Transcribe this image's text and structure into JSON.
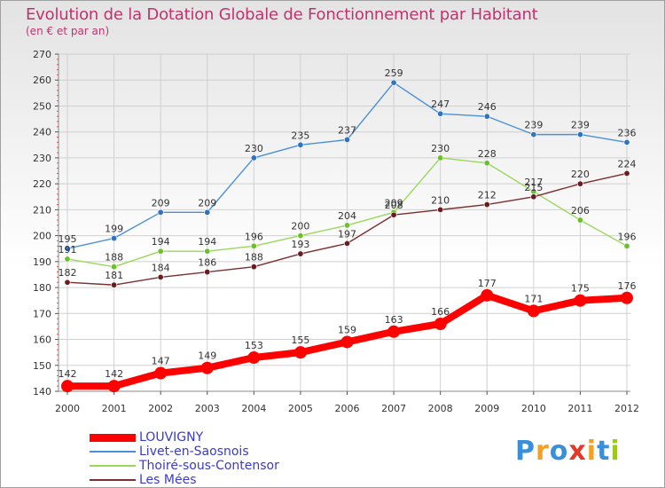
{
  "header": {
    "title": "Evolution de la Dotation Globale de Fonctionnement par Habitant",
    "subtitle": "(en € et par an)"
  },
  "chart_data": {
    "type": "line",
    "x": [
      "2000",
      "2001",
      "2002",
      "2003",
      "2004",
      "2005",
      "2006",
      "2007",
      "2008",
      "2009",
      "2010",
      "2011",
      "2012"
    ],
    "ylim": [
      140,
      270
    ],
    "yticks": [
      140,
      150,
      160,
      170,
      180,
      190,
      200,
      210,
      220,
      230,
      240,
      250,
      260,
      270
    ],
    "grid": true,
    "legend_position": "bottom-left",
    "series": [
      {
        "name": "Livet-en-Saosnois",
        "color": "#4a90d9",
        "marker": "#2e74c0",
        "values": [
          195,
          199,
          209,
          209,
          230,
          235,
          237,
          259,
          247,
          246,
          239,
          239,
          236
        ]
      },
      {
        "name": "Thoiré-sous-Contensor",
        "color": "#9ad85a",
        "marker": "#6cc02a",
        "values": [
          191,
          188,
          194,
          194,
          196,
          200,
          204,
          209,
          230,
          228,
          217,
          206,
          196
        ]
      },
      {
        "name": "Les Mées",
        "color": "#7a2f30",
        "marker": "#6a1d20",
        "values": [
          182,
          181,
          184,
          186,
          188,
          193,
          197,
          208,
          210,
          212,
          215,
          220,
          224
        ]
      },
      {
        "name": "LOUVIGNY",
        "color": "#ff0000",
        "marker": "#ff0000",
        "values": [
          142,
          142,
          147,
          149,
          153,
          155,
          159,
          163,
          166,
          177,
          171,
          175,
          176
        ]
      }
    ]
  },
  "legend": {
    "items": [
      {
        "label": "LOUVIGNY",
        "color": "#ff0000",
        "weight": 9
      },
      {
        "label": "Livet-en-Saosnois",
        "color": "#4a90d9",
        "weight": 2
      },
      {
        "label": "Thoiré-sous-Contensor",
        "color": "#9ad85a",
        "weight": 2
      },
      {
        "label": "Les Mées",
        "color": "#7a2f30",
        "weight": 2
      }
    ]
  },
  "logo": {
    "letters": [
      "P",
      "r",
      "o",
      "x",
      "i",
      "t",
      "i"
    ],
    "colors": [
      "#3a8fd9",
      "#f4a020",
      "#3a8fd9",
      "#e23a2a",
      "#f4a020",
      "#3a8fd9",
      "#9ad000"
    ]
  }
}
